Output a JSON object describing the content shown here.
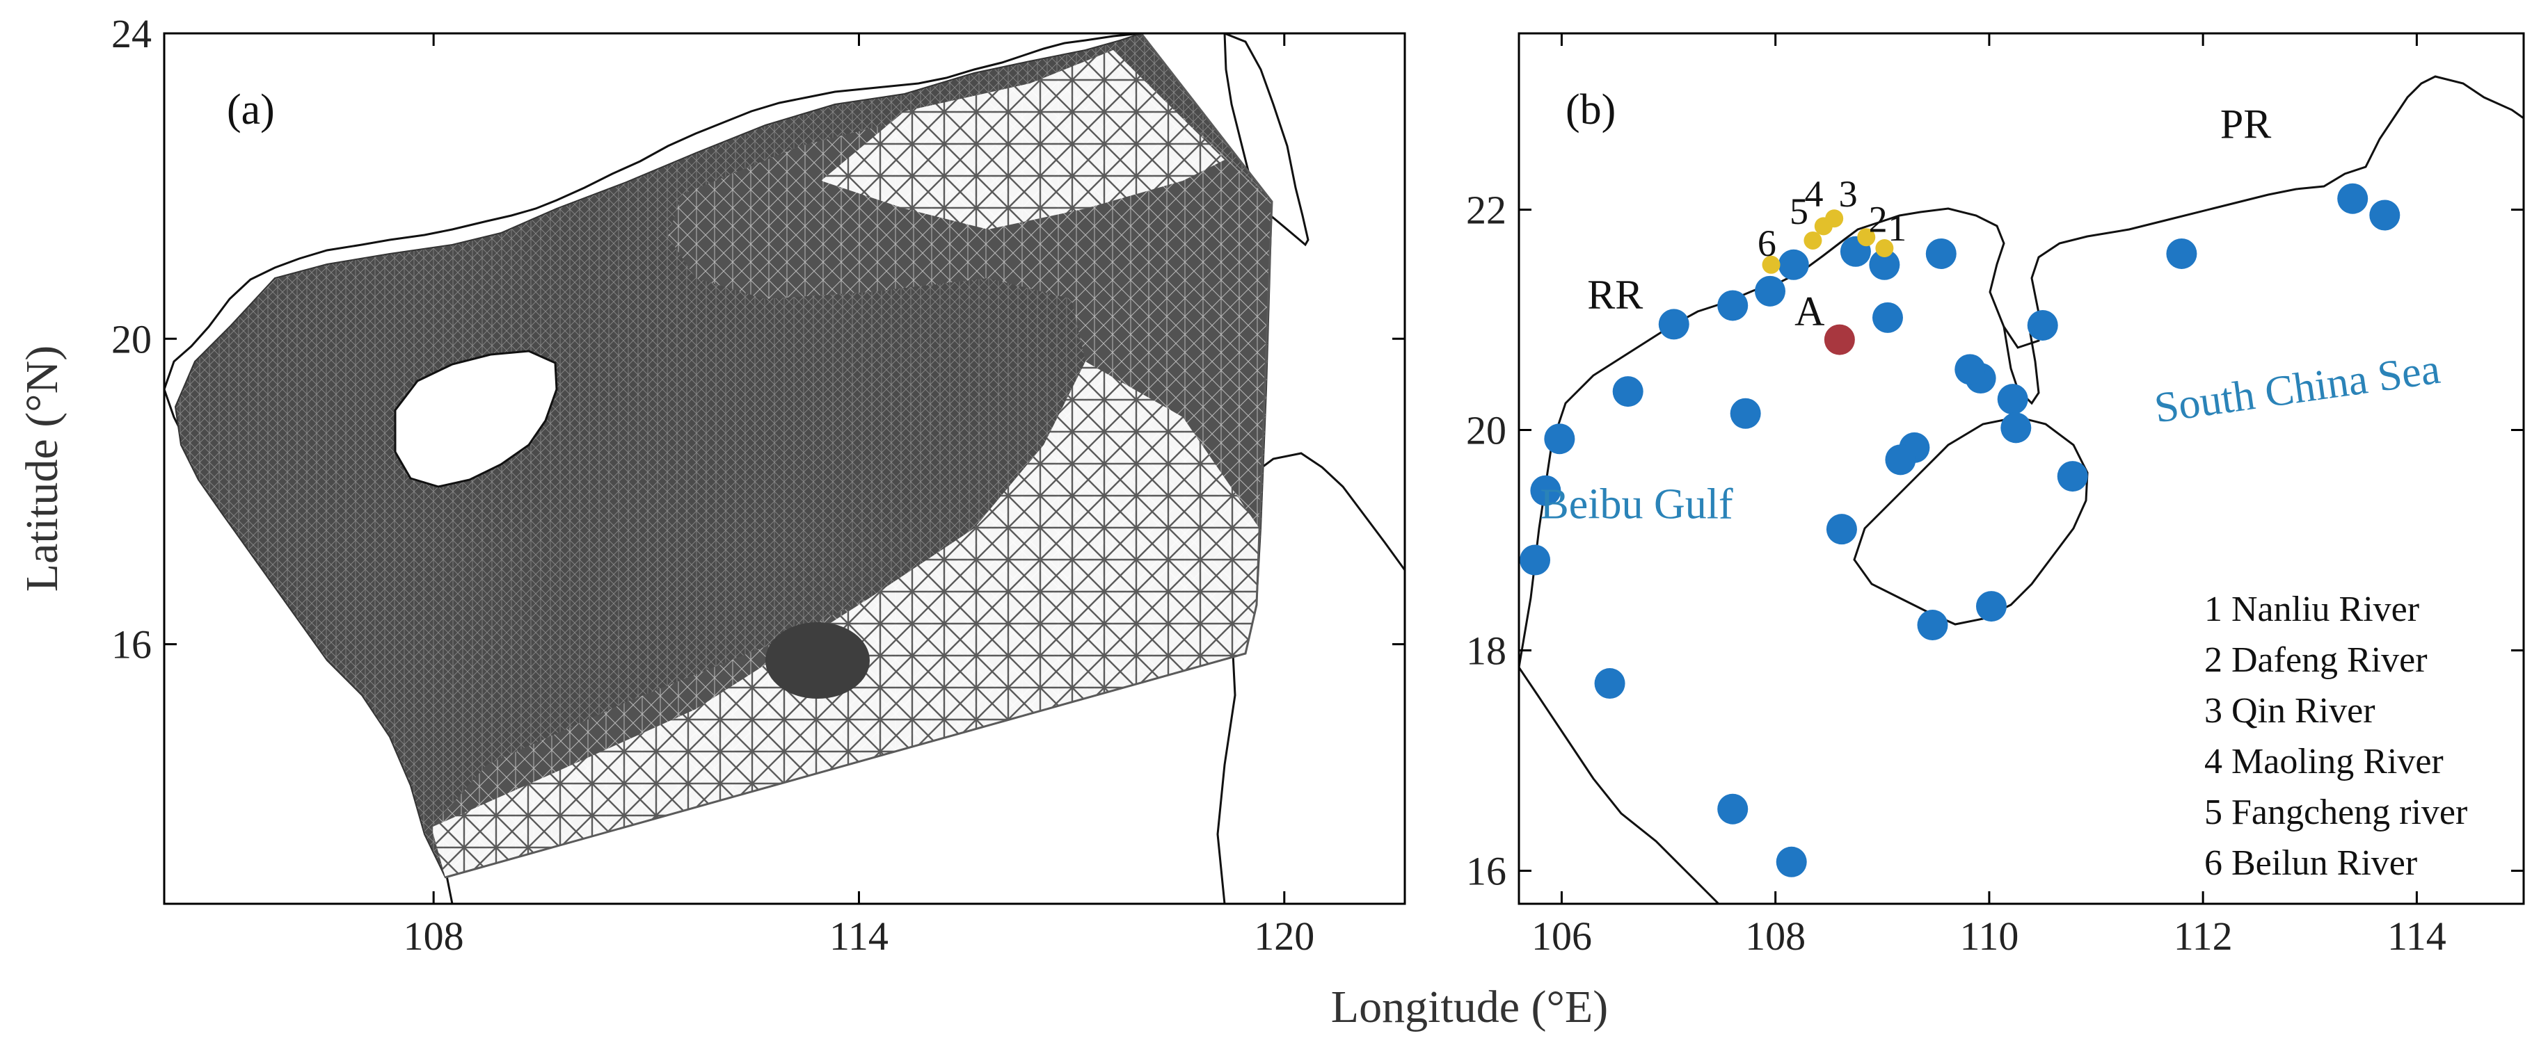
{
  "axes": {
    "ylabel": "Latitude (°N)",
    "xlabel": "Longitude (°E)"
  },
  "panel_a": {
    "label": "(a)",
    "xlim": [
      104.2,
      121.7
    ],
    "ylim": [
      12.6,
      24
    ],
    "xticks": [
      {
        "v": 108,
        "t": "108"
      },
      {
        "v": 114,
        "t": "114"
      },
      {
        "v": 120,
        "t": "120"
      }
    ],
    "yticks": [
      {
        "v": 16,
        "t": "16"
      },
      {
        "v": 20,
        "t": "20"
      },
      {
        "v": 24,
        "t": "24"
      }
    ],
    "mesh_color": "#505050",
    "land_color": "#ffffff",
    "coast_color": "#000000"
  },
  "panel_b": {
    "label": "(b)",
    "xlim": [
      105.6,
      115
    ],
    "ylim": [
      15.7,
      23.6
    ],
    "xticks": [
      {
        "v": 106,
        "t": "106"
      },
      {
        "v": 108,
        "t": "108"
      },
      {
        "v": 110,
        "t": "110"
      },
      {
        "v": 112,
        "t": "112"
      },
      {
        "v": 114,
        "t": "114"
      }
    ],
    "yticks": [
      {
        "v": 16,
        "t": "16"
      },
      {
        "v": 18,
        "t": "18"
      },
      {
        "v": 20,
        "t": "20"
      },
      {
        "v": 22,
        "t": "22"
      }
    ],
    "place_labels": [
      {
        "text": "PR",
        "lon": 112.4,
        "lat": 22.65
      },
      {
        "text": "RR",
        "lon": 106.5,
        "lat": 21.1
      },
      {
        "text": "A",
        "lon": 108.32,
        "lat": 20.95
      }
    ],
    "sea_labels": [
      {
        "text": "South China Sea",
        "lon": 112.9,
        "lat": 20.25,
        "angle": -8
      },
      {
        "text": "Beibu Gulf",
        "lon": 106.7,
        "lat": 19.2,
        "angle": 0
      }
    ],
    "river_numbers": [
      {
        "text": "4",
        "lon": 108.36,
        "lat": 22.03
      },
      {
        "text": "3",
        "lon": 108.68,
        "lat": 22.03
      },
      {
        "text": "5",
        "lon": 108.22,
        "lat": 21.87
      },
      {
        "text": "2",
        "lon": 108.96,
        "lat": 21.8
      },
      {
        "text": "1",
        "lon": 109.14,
        "lat": 21.72
      },
      {
        "text": "6",
        "lon": 107.92,
        "lat": 21.58
      }
    ],
    "legend_entries": [
      "1 Nanliu River",
      "2 Dafeng River",
      "3 Qin River",
      "4 Maoling River",
      "5 Fangcheng river",
      "6 Beilun River"
    ]
  },
  "chart_data": [
    {
      "type": "scatter",
      "panel": "(b)",
      "series": [
        {
          "color": "#1f77c4",
          "points": [
            [
              113.4,
              22.1
            ],
            [
              113.7,
              21.95
            ],
            [
              111.8,
              21.6
            ],
            [
              110.5,
              20.95
            ],
            [
              109.55,
              21.6
            ],
            [
              109.02,
              21.5
            ],
            [
              109.05,
              21.02
            ],
            [
              108.75,
              21.62
            ],
            [
              108.17,
              21.5
            ],
            [
              107.95,
              21.26
            ],
            [
              107.6,
              21.13
            ],
            [
              107.05,
              20.96
            ],
            [
              106.62,
              20.35
            ],
            [
              105.98,
              19.92
            ],
            [
              105.85,
              19.45
            ],
            [
              105.75,
              18.82
            ],
            [
              106.45,
              17.7
            ],
            [
              107.6,
              16.56
            ],
            [
              108.15,
              16.08
            ],
            [
              109.47,
              18.23
            ],
            [
              110.02,
              18.4
            ],
            [
              110.78,
              19.58
            ],
            [
              110.22,
              20.28
            ],
            [
              110.25,
              20.02
            ],
            [
              109.92,
              20.47
            ],
            [
              109.82,
              20.55
            ],
            [
              109.3,
              19.84
            ],
            [
              109.17,
              19.73
            ],
            [
              108.62,
              19.1
            ],
            [
              107.72,
              20.15
            ]
          ]
        },
        {
          "color": "#e3c02a",
          "points": [
            [
              107.96,
              21.5
            ],
            [
              108.35,
              21.72
            ],
            [
              108.45,
              21.85
            ],
            [
              108.55,
              21.92
            ],
            [
              108.85,
              21.75
            ],
            [
              109.02,
              21.65
            ]
          ]
        },
        {
          "color": "#a8373f",
          "points": [
            [
              108.6,
              20.82
            ]
          ]
        }
      ]
    }
  ]
}
